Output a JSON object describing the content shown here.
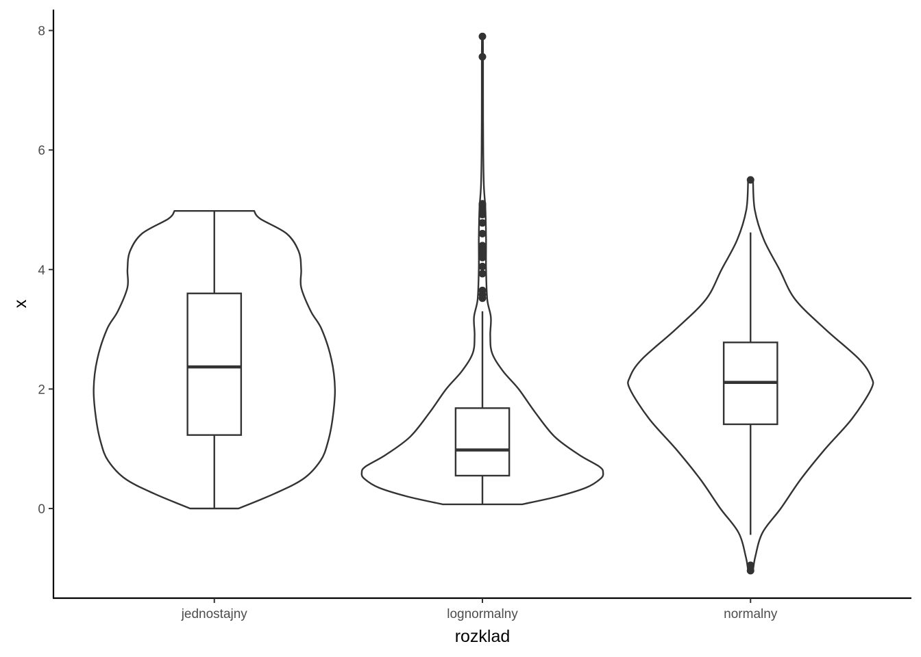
{
  "chart_data": {
    "type": "violin",
    "xlabel": "rozklad",
    "ylabel": "x",
    "ylim": [
      -1.5,
      8.35
    ],
    "yticks": [
      0,
      2,
      4,
      6,
      8
    ],
    "grid": false,
    "legend": "none",
    "categories": [
      "jednostajny",
      "lognormalny",
      "normalny"
    ],
    "series": [
      {
        "category": "jednostajny",
        "min": 0.0,
        "q1": 1.23,
        "median": 2.37,
        "q3": 3.6,
        "max": 4.98,
        "outliers": [],
        "density": [
          [
            0.0,
            0.2
          ],
          [
            0.25,
            0.5
          ],
          [
            0.5,
            0.74
          ],
          [
            0.8,
            0.88
          ],
          [
            1.1,
            0.94
          ],
          [
            1.5,
            0.98
          ],
          [
            2.0,
            1.0
          ],
          [
            2.5,
            0.97
          ],
          [
            3.0,
            0.89
          ],
          [
            3.3,
            0.8
          ],
          [
            3.7,
            0.72
          ],
          [
            4.0,
            0.72
          ],
          [
            4.3,
            0.7
          ],
          [
            4.6,
            0.6
          ],
          [
            4.85,
            0.38
          ],
          [
            4.98,
            0.33
          ]
        ]
      },
      {
        "category": "lognormalny",
        "min": 0.07,
        "q1": 0.55,
        "median": 0.98,
        "q3": 1.68,
        "max": 3.3,
        "outliers": [
          3.52,
          3.58,
          3.65,
          3.93,
          4.05,
          4.2,
          4.27,
          4.35,
          4.4,
          4.6,
          4.78,
          4.92,
          4.97,
          5.03,
          5.07,
          5.1,
          7.56,
          7.9
        ],
        "density": [
          [
            0.07,
            0.33
          ],
          [
            0.2,
            0.62
          ],
          [
            0.35,
            0.86
          ],
          [
            0.5,
            0.98
          ],
          [
            0.6,
            1.0
          ],
          [
            0.7,
            0.97
          ],
          [
            0.9,
            0.8
          ],
          [
            1.2,
            0.6
          ],
          [
            1.6,
            0.44
          ],
          [
            2.0,
            0.3
          ],
          [
            2.3,
            0.17
          ],
          [
            2.6,
            0.08
          ],
          [
            2.9,
            0.065
          ],
          [
            3.2,
            0.07
          ],
          [
            3.5,
            0.04
          ],
          [
            4.0,
            0.03
          ],
          [
            4.5,
            0.03
          ],
          [
            5.0,
            0.025
          ],
          [
            5.4,
            0.012
          ],
          [
            6.0,
            0.007
          ],
          [
            7.0,
            0.005
          ],
          [
            7.56,
            0.005
          ],
          [
            7.9,
            0.004
          ]
        ]
      },
      {
        "category": "normalny",
        "min": -0.44,
        "q1": 1.41,
        "median": 2.11,
        "q3": 2.78,
        "max": 4.62,
        "outliers": [
          -0.95,
          -1.04,
          5.5
        ],
        "density": [
          [
            -1.04,
            0.02
          ],
          [
            -0.8,
            0.04
          ],
          [
            -0.4,
            0.1
          ],
          [
            0.0,
            0.25
          ],
          [
            0.5,
            0.42
          ],
          [
            1.0,
            0.62
          ],
          [
            1.5,
            0.84
          ],
          [
            2.0,
            1.0
          ],
          [
            2.2,
            1.0
          ],
          [
            2.5,
            0.9
          ],
          [
            3.0,
            0.62
          ],
          [
            3.5,
            0.37
          ],
          [
            4.0,
            0.24
          ],
          [
            4.5,
            0.11
          ],
          [
            5.0,
            0.035
          ],
          [
            5.5,
            0.02
          ]
        ]
      }
    ]
  }
}
